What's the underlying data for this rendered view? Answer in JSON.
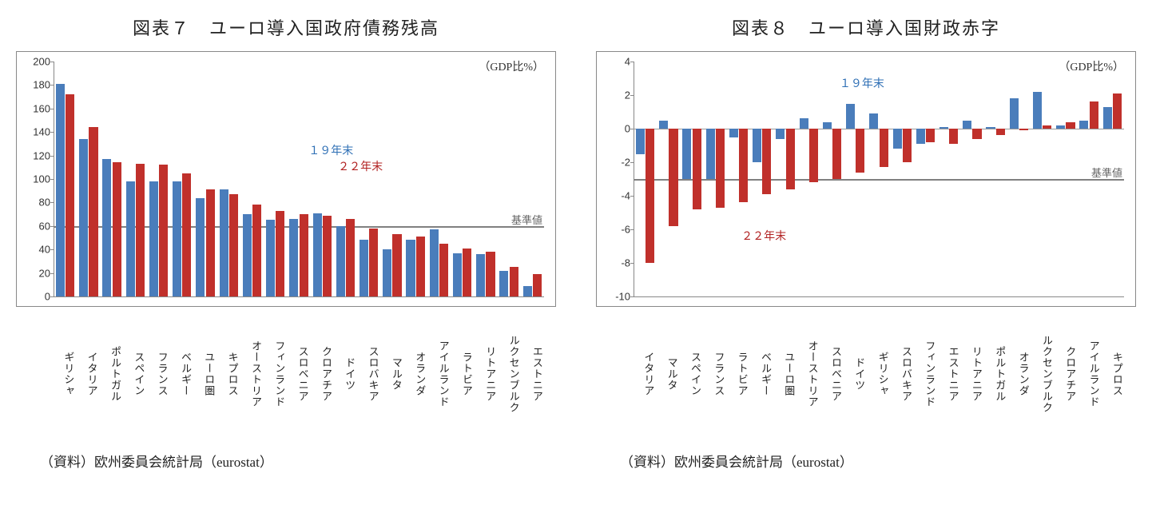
{
  "colors": {
    "series_2019": "#4a7dbb",
    "series_2022": "#c0302b",
    "baseline": "#808080",
    "axis": "#888888",
    "text": "#222222",
    "background": "#ffffff"
  },
  "annotations": {
    "y2019": "１９年末",
    "y2022": "２２年末",
    "baseline": "基準値",
    "unit": "（GDP比%）"
  },
  "chart7": {
    "title": "図表７　ユーロ導入国政府債務残高",
    "source": "（資料）欧州委員会統計局（eurostat）",
    "type": "bar",
    "ylim": [
      0,
      200
    ],
    "ytick_step": 20,
    "baseline_value": 60,
    "categories": [
      "ギリシャ",
      "イタリア",
      "ポルトガル",
      "スペイン",
      "フランス",
      "ベルギー",
      "ユーロ圏",
      "キプロス",
      "オーストリア",
      "フィンランド",
      "スロベニア",
      "クロアチア",
      "ドイツ",
      "スロバキア",
      "マルタ",
      "オランダ",
      "アイルランド",
      "ラトビア",
      "リトアニア",
      "ルクセンブルク",
      "エストニア"
    ],
    "series": {
      "y2019": [
        181,
        134,
        117,
        98,
        98,
        98,
        84,
        91,
        70,
        65,
        66,
        71,
        60,
        48,
        40,
        48,
        57,
        37,
        36,
        22,
        9
      ],
      "y2022": [
        172,
        144,
        114,
        113,
        112,
        105,
        91,
        87,
        78,
        73,
        70,
        69,
        66,
        58,
        53,
        51,
        45,
        41,
        38,
        25,
        19
      ]
    }
  },
  "chart8": {
    "title": "図表８　ユーロ導入国財政赤字",
    "source": "（資料）欧州委員会統計局（eurostat）",
    "type": "bar",
    "ylim": [
      -10,
      4
    ],
    "ytick_step": 2,
    "baseline_value": -3,
    "categories": [
      "イタリア",
      "マルタ",
      "スペイン",
      "フランス",
      "ラトビア",
      "ベルギー",
      "ユーロ圏",
      "オーストリア",
      "スロベニア",
      "ドイツ",
      "ギリシャ",
      "スロバキア",
      "フィンランド",
      "エストニア",
      "リトアニア",
      "ポルトガル",
      "オランダ",
      "ルクセンブルク",
      "クロアチア",
      "アイルランド",
      "キプロス"
    ],
    "series": {
      "y2019": [
        -1.5,
        0.5,
        -3.0,
        -3.0,
        -0.5,
        -2.0,
        -0.6,
        0.6,
        0.4,
        1.5,
        0.9,
        -1.2,
        -0.9,
        0.1,
        0.5,
        0.1,
        1.8,
        2.2,
        0.2,
        0.5,
        1.3
      ],
      "y2022": [
        -8.0,
        -5.8,
        -4.8,
        -4.7,
        -4.4,
        -3.9,
        -3.6,
        -3.2,
        -3.0,
        -2.6,
        -2.3,
        -2.0,
        -0.8,
        -0.9,
        -0.6,
        -0.4,
        -0.1,
        0.2,
        0.4,
        1.6,
        2.1
      ]
    }
  }
}
